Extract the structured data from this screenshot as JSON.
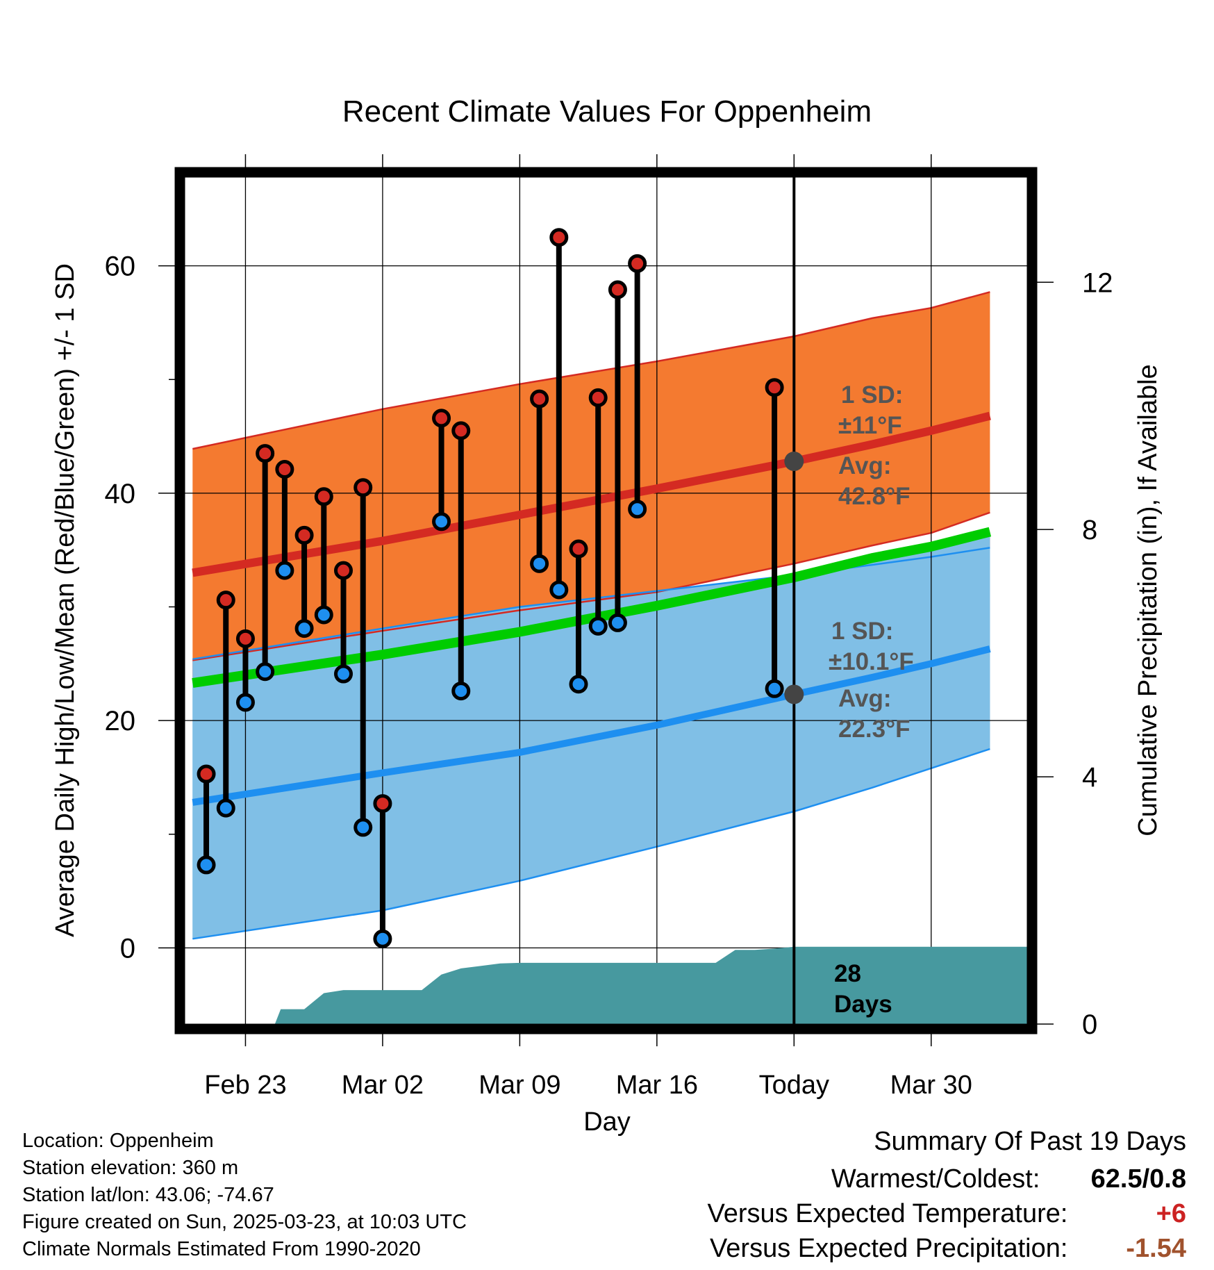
{
  "title": "Recent Climate Values For Oppenheim",
  "chart_data": {
    "type": "line",
    "title": "Recent Climate Values For Oppenheim",
    "xlabel": "Day",
    "ylabel": "Average Daily High/Low/Mean (Red/Blue/Green) +/- 1 SD",
    "ylabel_right": "Cumulative Precipitation (in), If Available",
    "ylim": [
      -6.7,
      67.8
    ],
    "y2lim": [
      0,
      13.7
    ],
    "xlim": [
      -3.1,
      39.9
    ],
    "x_ticks": [
      {
        "day": 0,
        "label": "Feb 23"
      },
      {
        "day": 7,
        "label": "Mar 02"
      },
      {
        "day": 14,
        "label": "Mar 09"
      },
      {
        "day": 21,
        "label": "Mar 16"
      },
      {
        "day": 28,
        "label": "Today"
      },
      {
        "day": 35,
        "label": "Mar 30"
      }
    ],
    "y_ticks": [
      0,
      20,
      40,
      60
    ],
    "y2_ticks": [
      0,
      4,
      8,
      12
    ],
    "grid": true,
    "normals": {
      "x": [
        -2.7,
        7,
        14,
        21,
        28,
        32,
        35,
        38
      ],
      "high_avg": [
        33,
        35.8,
        38.1,
        40.4,
        42.8,
        44.3,
        45.5,
        46.8
      ],
      "high_upper": [
        43.9,
        47.4,
        49.6,
        51.6,
        53.8,
        55.4,
        56.3,
        57.7
      ],
      "high_lower": [
        25.3,
        27.9,
        29.7,
        31.3,
        33.8,
        35.4,
        36.5,
        38.3
      ],
      "low_avg": [
        12.8,
        15.4,
        17.2,
        19.6,
        22.3,
        23.8,
        25,
        26.3
      ],
      "low_upper": [
        25.4,
        28.1,
        30,
        31.4,
        32.8,
        33.7,
        34.4,
        35.2
      ],
      "low_lower": [
        0.8,
        3.3,
        5.9,
        8.9,
        12,
        14.1,
        15.8,
        17.5
      ],
      "mean_avg": [
        23.3,
        25.8,
        27.8,
        30.1,
        32.6,
        34.3,
        35.3,
        36.6
      ]
    },
    "observations": [
      {
        "day": -2,
        "high": 15.3,
        "low": 7.3
      },
      {
        "day": -1,
        "high": 30.6,
        "low": 12.3
      },
      {
        "day": 0,
        "high": 27.2,
        "low": 21.6
      },
      {
        "day": 1,
        "high": 43.5,
        "low": 24.3
      },
      {
        "day": 2,
        "high": 42.1,
        "low": 33.2
      },
      {
        "day": 3,
        "high": 36.3,
        "low": 28.1
      },
      {
        "day": 4,
        "high": 39.7,
        "low": 29.3
      },
      {
        "day": 5,
        "high": 33.2,
        "low": 24.1
      },
      {
        "day": 6,
        "high": 40.5,
        "low": 10.6
      },
      {
        "day": 7,
        "high": 12.7,
        "low": 0.8
      },
      {
        "day": 10,
        "high": 46.6,
        "low": 37.5
      },
      {
        "day": 11,
        "high": 45.5,
        "low": 22.6
      },
      {
        "day": 15,
        "high": 48.3,
        "low": 33.8
      },
      {
        "day": 16,
        "high": 62.5,
        "low": 31.5
      },
      {
        "day": 17,
        "high": 35.1,
        "low": 23.2
      },
      {
        "day": 18,
        "high": 48.4,
        "low": 28.3
      },
      {
        "day": 19,
        "high": 57.9,
        "low": 28.6
      },
      {
        "day": 20,
        "high": 60.2,
        "low": 38.6
      },
      {
        "day": 27,
        "high": 49.3,
        "low": 22.8
      }
    ],
    "precipitation": {
      "x": [
        -3.1,
        1.5,
        1.8,
        3,
        4,
        5,
        6,
        8,
        9,
        10,
        11,
        12,
        13,
        14,
        15,
        16,
        17,
        18,
        19,
        20,
        21,
        22,
        23,
        24,
        25,
        26,
        27,
        28,
        39.9
      ],
      "values": [
        0,
        0,
        0.24,
        0.24,
        0.5,
        0.55,
        0.55,
        0.55,
        0.55,
        0.8,
        0.9,
        0.94,
        0.98,
        0.99,
        0.99,
        0.99,
        0.99,
        0.99,
        0.99,
        0.99,
        0.99,
        0.99,
        0.99,
        0.99,
        1.2,
        1.2,
        1.22,
        1.25,
        1.25
      ]
    },
    "annotations": {
      "high_sd_label": "1 SD:",
      "high_sd_value": "±11°F",
      "high_avg_label": "Avg:",
      "high_avg_value": "42.8°F",
      "low_sd_label": "1 SD:",
      "low_sd_value": "±10.1°F",
      "low_avg_label": "Avg:",
      "low_avg_value": "22.3°F",
      "days_number": "28",
      "days_word": "Days"
    },
    "colors": {
      "high_band": "#f47a30",
      "high_band_edge": "#d42a22",
      "high_line": "#d42a22",
      "low_band": "#80bfe6",
      "low_band_edge": "#1e8ff0",
      "low_line": "#1e8ff0",
      "mean_line": "#00cc00",
      "overlap": "#951016",
      "precip": "#47999f",
      "high_marker": "#d42a22",
      "low_marker": "#1e8ff0",
      "annotation_text": "#555555",
      "today_marker": "#444444"
    }
  },
  "info": {
    "location": "Location: Oppenheim",
    "elevation": "Station elevation: 360 m",
    "latlon": "Station lat/lon: 43.06; -74.67",
    "created": "Figure created on Sun, 2025-03-23, at 10:03 UTC",
    "normals": "Climate Normals Estimated From 1990-2020"
  },
  "summary": {
    "title": "Summary Of Past 19 Days",
    "warmest_coldest_label": "Warmest/Coldest:",
    "warmest_coldest_value": "62.5/0.8",
    "temp_label": "Versus Expected Temperature:",
    "temp_value": "+6",
    "temp_color": "#cc2222",
    "precip_label": "Versus Expected Precipitation:",
    "precip_value": "-1.54",
    "precip_color": "#a0522d"
  }
}
